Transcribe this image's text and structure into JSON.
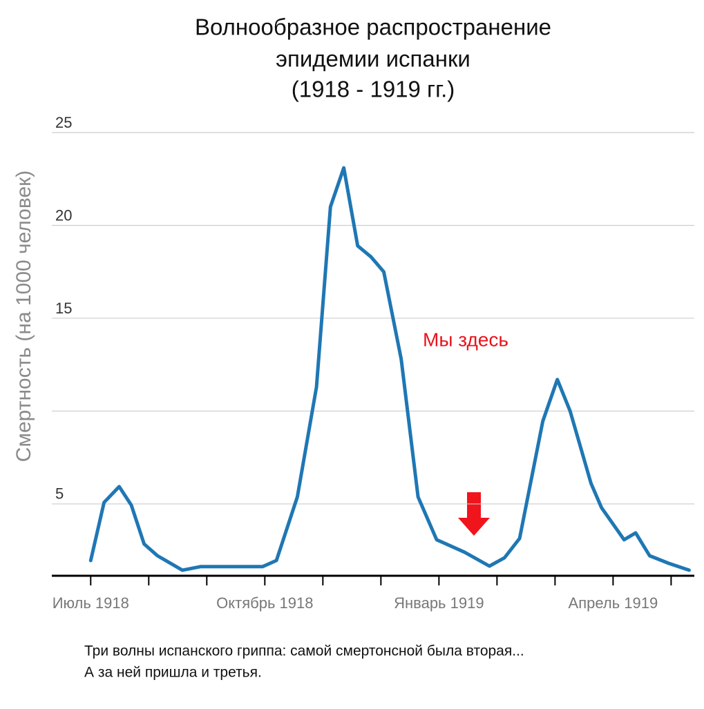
{
  "chart_data": {
    "type": "line",
    "title": [
      "Волнообразное распространение",
      "эпидемии испанки",
      "(1918 - 1919 гг.)"
    ],
    "y_label": "Смертность (на 1000 человек)",
    "annotation": "Мы здесь",
    "caption": [
      "Три волны испанского гриппа: самой смертонсной была вторая...",
      "А за ней пришла и третья."
    ],
    "xlim": [
      -0.67,
      10.4
    ],
    "xticks": [
      {
        "value": 0,
        "label": "Июль 1918"
      },
      {
        "value": 1,
        "label": null
      },
      {
        "value": 2,
        "label": null
      },
      {
        "value": 3,
        "label": "Октябрь 1918"
      },
      {
        "value": 4,
        "label": null
      },
      {
        "value": 5,
        "label": null
      },
      {
        "value": 6,
        "label": "Январь 1919"
      },
      {
        "value": 7,
        "label": null
      },
      {
        "value": 8,
        "label": null
      },
      {
        "value": 9,
        "label": "Апрель 1919"
      },
      {
        "value": 10,
        "label": null
      }
    ],
    "ylim": [
      1.13,
      25
    ],
    "yticks": [
      5,
      {
        "value": 10,
        "label": null
      },
      15,
      20,
      25
    ],
    "grid": true,
    "series": [
      {
        "color": "#1f77b4",
        "x": [
          0,
          0.23,
          0.49,
          0.7,
          0.92,
          1.15,
          1.58,
          1.89,
          2.96,
          3.2,
          3.56,
          3.89,
          4.13,
          4.36,
          4.6,
          4.83,
          5.05,
          5.35,
          5.64,
          5.96,
          6.44,
          6.87,
          7.13,
          7.39,
          7.79,
          8.04,
          8.26,
          8.62,
          8.8,
          9.19,
          9.39,
          9.63,
          9.96,
          10.31
        ],
        "values": [
          1.95,
          5.08,
          5.93,
          4.93,
          2.84,
          2.21,
          1.43,
          1.62,
          1.62,
          1.95,
          5.38,
          11.3,
          21.0,
          23.1,
          18.9,
          18.3,
          17.5,
          12.8,
          5.38,
          3.07,
          2.4,
          1.65,
          2.1,
          3.14,
          9.46,
          11.7,
          10.0,
          6.1,
          4.8,
          3.07,
          3.44,
          2.21,
          1.8,
          1.43
        ]
      }
    ]
  }
}
